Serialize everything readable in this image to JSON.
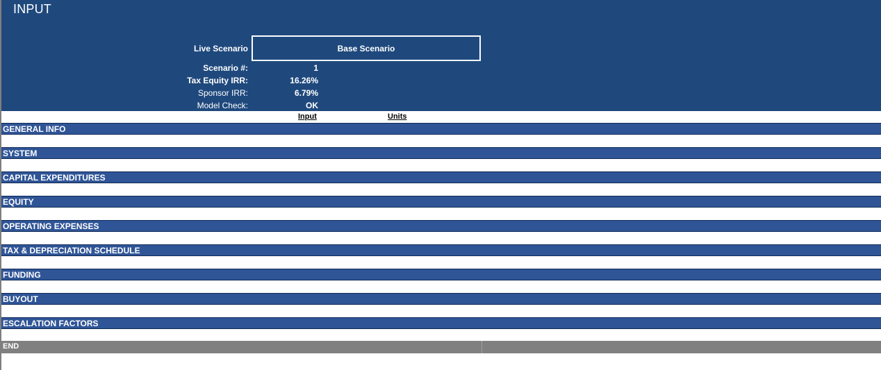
{
  "title": "INPUT",
  "scenario": {
    "live_label": "Live Scenario",
    "live_value": "Base Scenario",
    "number_label": "Scenario #:",
    "number_value": "1",
    "tax_equity_irr_label": "Tax Equity IRR:",
    "tax_equity_irr_value": "16.26%",
    "sponsor_irr_label": "Sponsor IRR:",
    "sponsor_irr_value": "6.79%",
    "model_check_label": "Model Check:",
    "model_check_value": "OK"
  },
  "columns": {
    "input": "Input",
    "units": "Units"
  },
  "sections": [
    "GENERAL INFO",
    "SYSTEM",
    "CAPITAL EXPENDITURES",
    "EQUITY",
    "OPERATING EXPENSES",
    "TAX & DEPRECIATION SCHEDULE",
    "FUNDING",
    "BUYOUT",
    "ESCALATION FACTORS"
  ],
  "end_label": "END",
  "colors": {
    "header_band": "#1f497d",
    "section_band": "#2f5597",
    "end_band": "#808080"
  }
}
